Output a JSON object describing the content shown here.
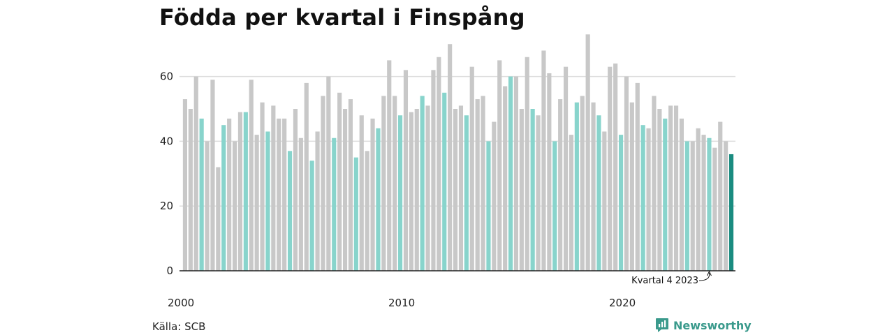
{
  "title": "Födda per kvartal i Finspång",
  "source": "Källa: SCB",
  "brand": "Newsworthy",
  "colors": {
    "default": "#c8c8c8",
    "q4": "#88d4cc",
    "latest": "#1a8c80",
    "grid": "#dddddd"
  },
  "chart_data": {
    "type": "bar",
    "title": "Födda per kvartal i Finspång",
    "xlabel": "",
    "ylabel": "",
    "ylim": [
      0,
      75
    ],
    "yticks": [
      0,
      20,
      40,
      60
    ],
    "grid": true,
    "xticks": [
      {
        "label": "2000",
        "index": 0
      },
      {
        "label": "2010",
        "index": 40
      },
      {
        "label": "2020",
        "index": 80
      }
    ],
    "start_year": 2000,
    "annotation": {
      "text": "Kvartal 4 2023",
      "index": 95
    },
    "values": [
      53,
      50,
      60,
      47,
      40,
      59,
      32,
      45,
      47,
      40,
      49,
      49,
      59,
      42,
      52,
      43,
      51,
      47,
      47,
      37,
      50,
      41,
      58,
      34,
      43,
      54,
      60,
      41,
      55,
      50,
      53,
      35,
      48,
      37,
      47,
      44,
      54,
      65,
      54,
      48,
      62,
      49,
      50,
      54,
      51,
      62,
      66,
      55,
      70,
      50,
      51,
      48,
      63,
      53,
      54,
      40,
      46,
      65,
      57,
      60,
      60,
      50,
      66,
      50,
      48,
      68,
      61,
      40,
      53,
      63,
      42,
      52,
      54,
      73,
      52,
      48,
      43,
      63,
      64,
      42,
      60,
      52,
      58,
      45,
      44,
      54,
      50,
      47,
      51,
      51,
      47,
      40,
      40,
      44,
      42,
      41,
      38,
      46,
      40,
      36
    ]
  }
}
